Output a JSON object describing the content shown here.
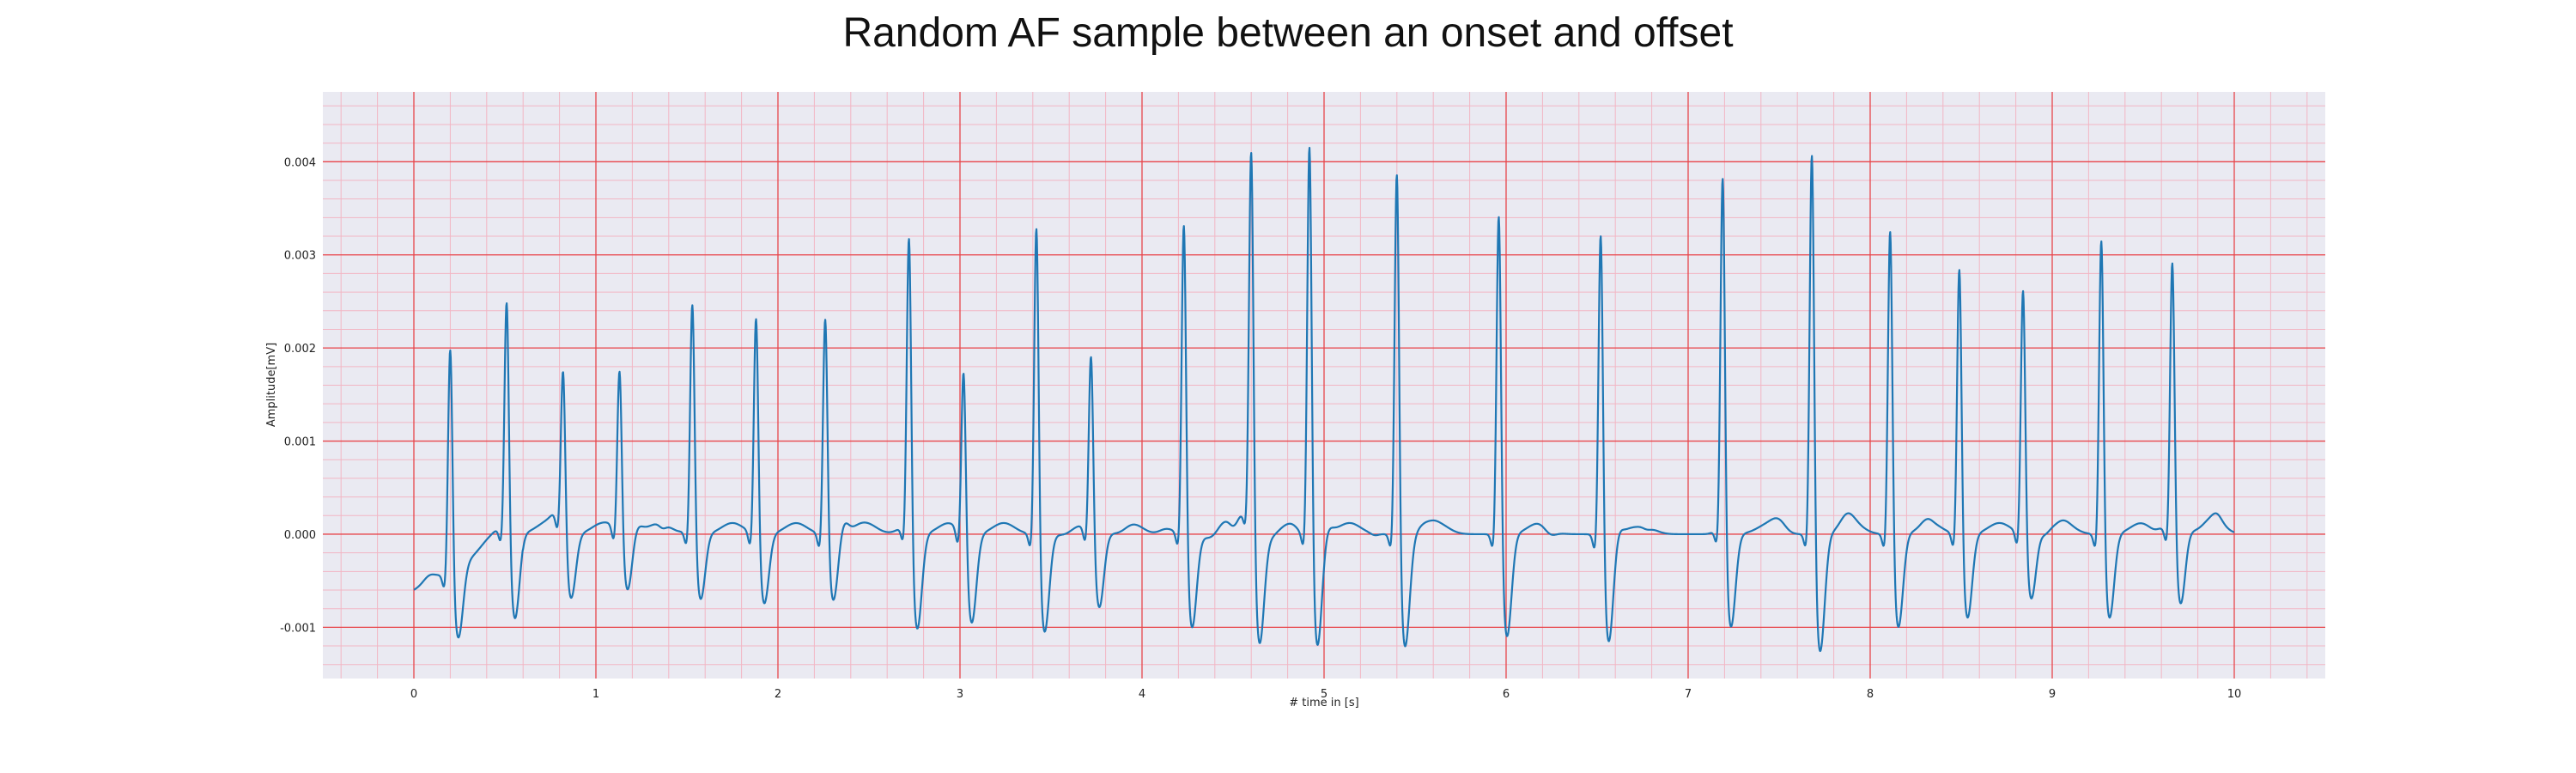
{
  "chart_data": {
    "type": "line",
    "title": "Random AF sample between an onset and offset",
    "xlabel": "# time in [s]",
    "ylabel": "Amplitude[mV]",
    "xlim": [
      -0.5,
      10.5
    ],
    "ylim": [
      -0.00155,
      0.00475
    ],
    "x_ticks": [
      0,
      1,
      2,
      3,
      4,
      5,
      6,
      7,
      8,
      9,
      10
    ],
    "x_tick_labels": [
      "0",
      "1",
      "2",
      "3",
      "4",
      "5",
      "6",
      "7",
      "8",
      "9",
      "10"
    ],
    "y_ticks": [
      -0.001,
      0.0,
      0.001,
      0.002,
      0.003,
      0.004
    ],
    "y_tick_labels": [
      "-0.001",
      "0.000",
      "0.001",
      "0.002",
      "0.003",
      "0.004"
    ],
    "grid": true,
    "minor_grid": true,
    "legend": "none",
    "background_color": "#eaeaf2",
    "major_grid_color": "#e8464b",
    "minor_grid_color": "#f2b6c4",
    "line_color": "#1f77b4",
    "baseline_start": -0.0006,
    "baseline_end": 2e-05,
    "x_end": 10.0,
    "r_peaks": [
      {
        "x": 0.2,
        "peak": 0.00253,
        "s_trough": -0.00075
      },
      {
        "x": 0.51,
        "peak": 0.0026,
        "s_trough": -0.00095
      },
      {
        "x": 0.82,
        "peak": 0.00184,
        "s_trough": -0.00065
      },
      {
        "x": 1.13,
        "peak": 0.00182,
        "s_trough": -0.0007
      },
      {
        "x": 1.53,
        "peak": 0.00255,
        "s_trough": -0.00075
      },
      {
        "x": 1.88,
        "peak": 0.00245,
        "s_trough": -0.00075
      },
      {
        "x": 2.26,
        "peak": 0.00246,
        "s_trough": -0.0007
      },
      {
        "x": 2.72,
        "peak": 0.00331,
        "s_trough": -0.00105
      },
      {
        "x": 3.02,
        "peak": 0.00193,
        "s_trough": -0.0009
      },
      {
        "x": 3.42,
        "peak": 0.00349,
        "s_trough": -0.00105
      },
      {
        "x": 3.72,
        "peak": 0.00202,
        "s_trough": -0.0008
      },
      {
        "x": 4.23,
        "peak": 0.00351,
        "s_trough": -0.001
      },
      {
        "x": 4.6,
        "peak": 0.00416,
        "s_trough": -0.0012
      },
      {
        "x": 4.92,
        "peak": 0.00441,
        "s_trough": -0.00125
      },
      {
        "x": 5.4,
        "peak": 0.0041,
        "s_trough": -0.0012
      },
      {
        "x": 5.96,
        "peak": 0.00363,
        "s_trough": -0.0011
      },
      {
        "x": 6.52,
        "peak": 0.0035,
        "s_trough": -0.0011
      },
      {
        "x": 7.19,
        "peak": 0.00398,
        "s_trough": -0.001
      },
      {
        "x": 7.68,
        "peak": 0.00432,
        "s_trough": -0.00125
      },
      {
        "x": 8.11,
        "peak": 0.00345,
        "s_trough": -0.001
      },
      {
        "x": 8.49,
        "peak": 0.00302,
        "s_trough": -0.0009
      },
      {
        "x": 8.84,
        "peak": 0.00273,
        "s_trough": -0.0007
      },
      {
        "x": 9.27,
        "peak": 0.00333,
        "s_trough": -0.0009
      },
      {
        "x": 9.66,
        "peak": 0.00298,
        "s_trough": -0.00085
      }
    ]
  }
}
